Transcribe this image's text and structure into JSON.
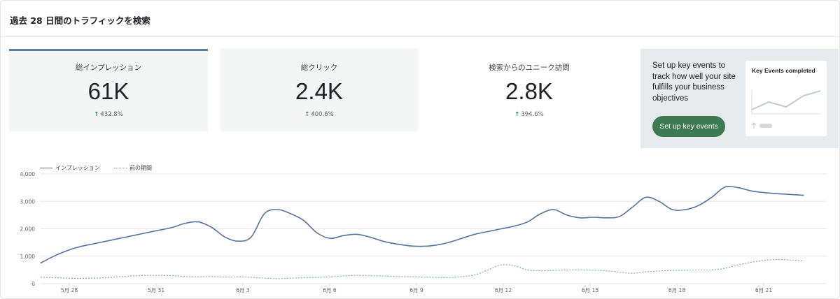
{
  "header": {
    "title": "過去 28 日間のトラフィックを検索"
  },
  "cards": [
    {
      "label": "総インプレッション",
      "value": "61K",
      "change": "432.8%"
    },
    {
      "label": "総クリック",
      "value": "2.4K",
      "change": "400.6%"
    },
    {
      "label": "検索からのユニーク訪問",
      "value": "2.8K",
      "change": "394.6%"
    }
  ],
  "icons": {
    "change_arrow": "arrow-up-icon",
    "mini_arrow": "arrow-up-icon"
  },
  "colors": {
    "primary_series": "#5672a0",
    "previous_series": "#7aa7d4",
    "button": "#3d7a52",
    "accent": "#5d7d9c",
    "trend_up": "#1e8e3e"
  },
  "promo": {
    "text": "Set up key events to track how well your site fulfills your business objectives",
    "button_label": "Set up key events",
    "mini_card_title": "Key Events completed"
  },
  "legend": {
    "current": "インプレッション",
    "previous": "前の期間"
  },
  "chart_data": {
    "type": "line",
    "categories": [
      "5月 28",
      "5月 31",
      "6月 3",
      "6月 6",
      "6月 9",
      "6月 12",
      "6月 15",
      "6月 18",
      "6月 21"
    ],
    "yticks": [
      0,
      1000,
      2000,
      3000,
      4000
    ],
    "ytick_labels": [
      "0",
      "1,000",
      "2,000",
      "3,000",
      "4,000"
    ],
    "ylim": [
      0,
      4000
    ],
    "grid": true,
    "legend_position": "top-left",
    "x": [
      0,
      0.5,
      1,
      1.5,
      2,
      2.5,
      3,
      3.5,
      4,
      4.5,
      5,
      5.5,
      6,
      6.5,
      7,
      7.5,
      8,
      8.5,
      9,
      9.5,
      10,
      10.5,
      11,
      11.5,
      12,
      12.5,
      13,
      13.5,
      14,
      14.5,
      15,
      15.5,
      16,
      16.5,
      17,
      17.5,
      18,
      18.5,
      19,
      19.5,
      20,
      20.5,
      21,
      21.5,
      22,
      22.5,
      23,
      23.5,
      24,
      24.5,
      25,
      25.5,
      26,
      26.5,
      27,
      27.5,
      28,
      28.5,
      29
    ],
    "series": [
      {
        "name": "インプレッション",
        "values": [
          750,
          1000,
          1200,
          1350,
          1450,
          1550,
          1650,
          1750,
          1850,
          1950,
          2050,
          2200,
          2250,
          2050,
          1700,
          1550,
          1700,
          2550,
          2700,
          2550,
          2300,
          1850,
          1650,
          1750,
          1800,
          1700,
          1550,
          1450,
          1380,
          1360,
          1400,
          1500,
          1650,
          1800,
          1900,
          2000,
          2100,
          2250,
          2550,
          2700,
          2500,
          2400,
          2420,
          2400,
          2450,
          2800,
          3150,
          3000,
          2700,
          2700,
          2850,
          3150,
          3520,
          3500,
          3380,
          3320,
          3280,
          3250,
          3220
        ]
      },
      {
        "name": "前の期間",
        "values": [
          230,
          220,
          200,
          190,
          200,
          220,
          250,
          280,
          300,
          300,
          290,
          260,
          250,
          260,
          240,
          250,
          230,
          200,
          180,
          200,
          220,
          230,
          250,
          280,
          300,
          290,
          280,
          260,
          250,
          240,
          230,
          220,
          250,
          320,
          500,
          680,
          650,
          500,
          470,
          480,
          500,
          500,
          490,
          470,
          420,
          380,
          430,
          460,
          480,
          490,
          500,
          500,
          560,
          680,
          780,
          850,
          880,
          860,
          830
        ]
      }
    ]
  }
}
